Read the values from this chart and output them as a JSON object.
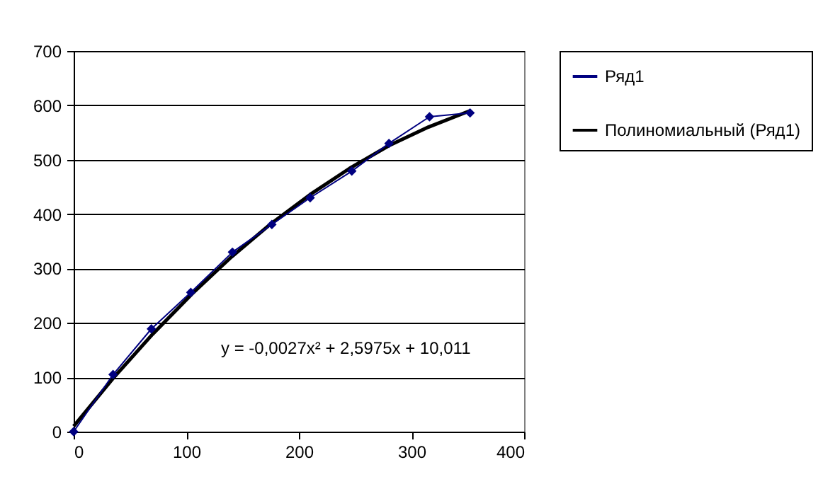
{
  "chart_data": {
    "type": "line",
    "xlim": [
      0,
      400
    ],
    "xticks": [
      0,
      100,
      200,
      300,
      400
    ],
    "ylim": [
      0,
      700
    ],
    "yticks": [
      0,
      100,
      200,
      300,
      400,
      500,
      600,
      700
    ],
    "grid": "y",
    "legend": "right",
    "series": [
      {
        "name": "Ряд1",
        "color": "#000080",
        "marker": "diamond",
        "x": [
          0,
          35,
          69,
          104,
          141,
          176,
          210,
          247,
          280,
          316,
          352
        ],
        "values": [
          0,
          105,
          189,
          256,
          330,
          381,
          430,
          479,
          530,
          579,
          586
        ]
      },
      {
        "name": "Полиномиальный (Ряд1)",
        "color": "#000000",
        "marker": "none",
        "x": [
          0,
          35,
          70,
          105,
          140,
          175,
          210,
          245,
          280,
          315,
          352
        ],
        "values": [
          10,
          98,
          179,
          253,
          321,
          382,
          436,
          484,
          526,
          560,
          590
        ]
      }
    ],
    "annotations": [
      "y = -0,0027x² + 2,5975x + 10,011"
    ]
  }
}
